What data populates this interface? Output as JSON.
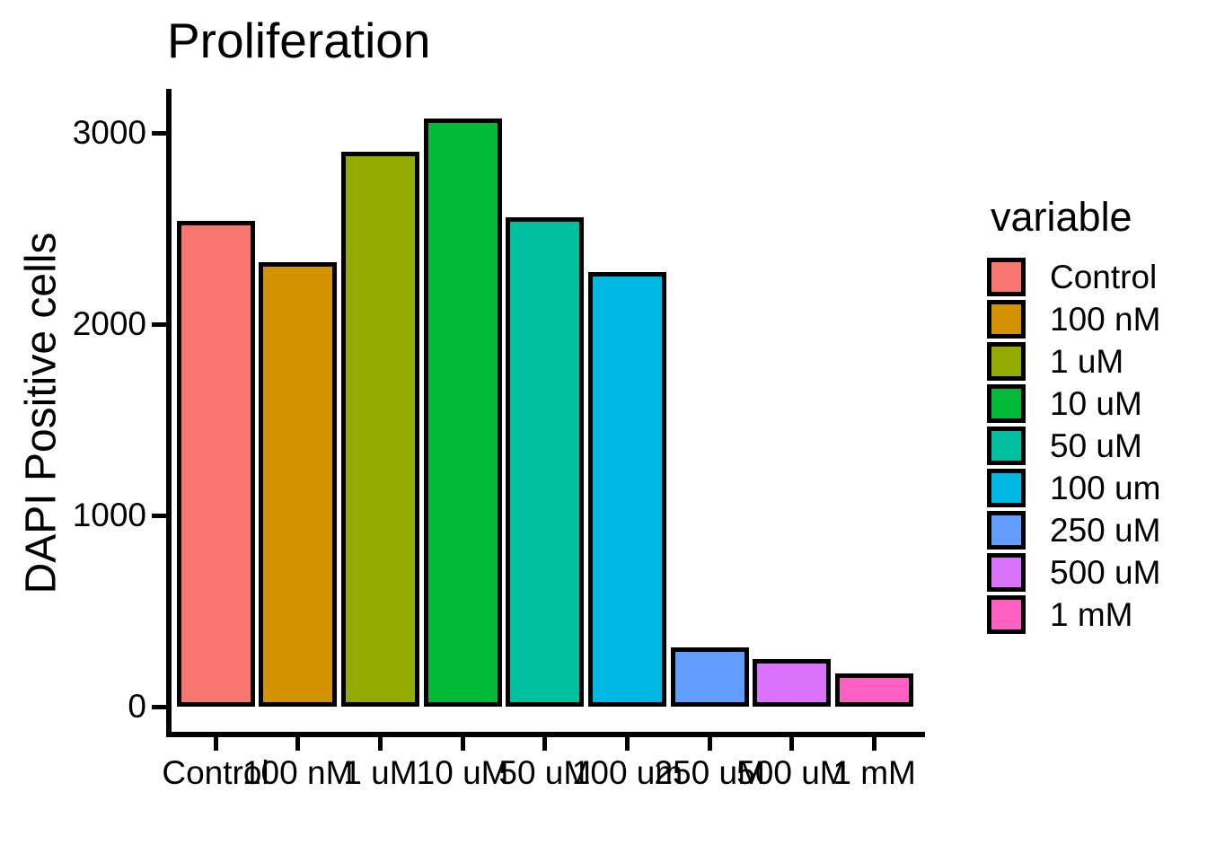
{
  "chart_data": {
    "type": "bar",
    "title": "Proliferation",
    "xlabel": "",
    "ylabel": "DAPI Positive cells",
    "categories": [
      "Control",
      "100 nM",
      "1 uM",
      "10 uM",
      "50 uM",
      "100 um",
      "250 uM",
      "500 uM",
      "1 mM"
    ],
    "values": [
      2540,
      2325,
      2900,
      3075,
      2560,
      2270,
      310,
      250,
      175
    ],
    "bar_colors": [
      "#F8766D",
      "#D39200",
      "#93AA00",
      "#00BA38",
      "#00C19F",
      "#00B9E3",
      "#619CFF",
      "#DB72FB",
      "#FF61C3"
    ],
    "bar_outline_color": "#000000",
    "yticks": [
      0,
      1000,
      2000,
      3000
    ],
    "ylim": [
      0,
      3230
    ],
    "grid": false,
    "legend": {
      "title": "variable",
      "position": "right",
      "entries": [
        {
          "label": "Control",
          "color": "#F8766D"
        },
        {
          "label": "100 nM",
          "color": "#D39200"
        },
        {
          "label": "1 uM",
          "color": "#93AA00"
        },
        {
          "label": "10 uM",
          "color": "#00BA38"
        },
        {
          "label": "50 uM",
          "color": "#00C19F"
        },
        {
          "label": "100 um",
          "color": "#00B9E3"
        },
        {
          "label": "250 uM",
          "color": "#619CFF"
        },
        {
          "label": "500 uM",
          "color": "#DB72FB"
        },
        {
          "label": "1 mM",
          "color": "#FF61C3"
        }
      ]
    }
  }
}
